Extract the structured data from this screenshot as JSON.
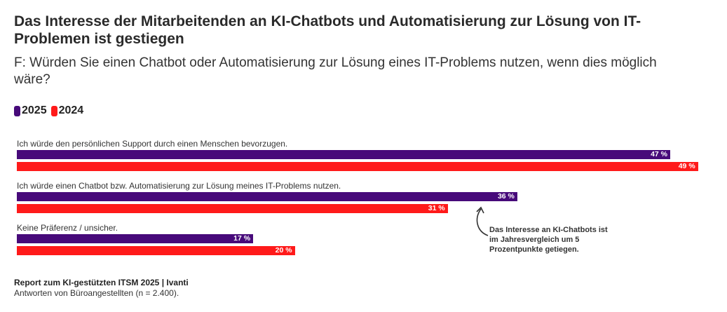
{
  "chart_data": {
    "type": "bar",
    "orientation": "horizontal",
    "title": "Das Interesse der Mitarbeitenden an KI-Chatbots und Automatisierung zur Lösung von IT-Problemen ist gestiegen",
    "subtitle": "F: Würden Sie einen Chatbot oder Automatisierung zur Lösung eines IT-Problems nutzen, wenn dies möglich wäre?",
    "categories": [
      "Ich würde den persönlichen Support durch einen Menschen bevorzugen.",
      "Ich würde einen Chatbot bzw. Automatisierung zur Lösung meines IT-Problems nutzen.",
      "Keine Präferenz / unsicher."
    ],
    "series": [
      {
        "name": "2025",
        "color": "#470a7a",
        "values": [
          47,
          36,
          17
        ],
        "labels": [
          "47 %",
          "36 %",
          "17 %"
        ]
      },
      {
        "name": "2024",
        "color": "#ff1a1a",
        "values": [
          49,
          31,
          20
        ],
        "labels": [
          "49 %",
          "31 %",
          "20 %"
        ]
      }
    ],
    "annotation": "Das Interesse an KI-Chatbots ist im Jahresvergleich um 5 Prozentpunkte getiegen.",
    "legend": "top-left",
    "grid": false
  },
  "footer": {
    "source": "Report zum KI-gestützten ITSM 2025 | Ivanti",
    "note": "Antworten von Büroangestellten (n = 2.400)."
  }
}
